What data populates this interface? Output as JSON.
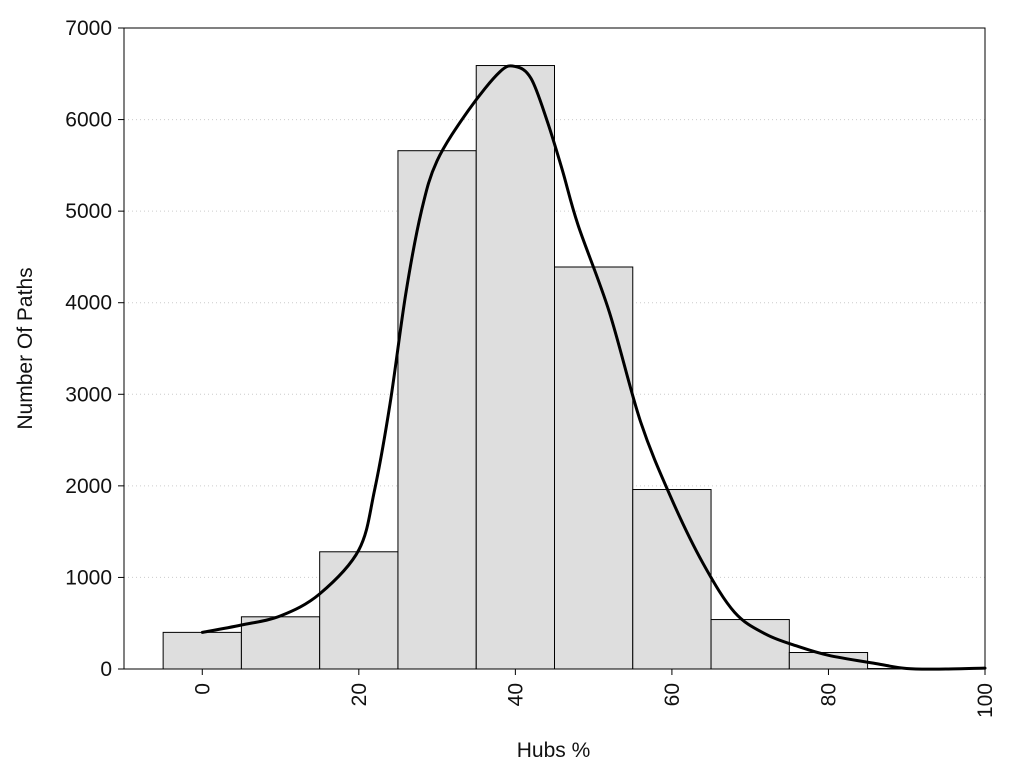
{
  "chart_data": {
    "type": "bar",
    "title": "",
    "xlabel": "Hubs %",
    "ylabel": "Number Of Paths",
    "xlim": [
      -10,
      100
    ],
    "ylim": [
      0,
      7000
    ],
    "grid": true,
    "bar_color": "#dedede",
    "bar_edge_color": "#000000",
    "curve_color": "#000000",
    "grid_color": "#cccccc",
    "x_ticks": [
      0,
      20,
      40,
      60,
      80,
      100
    ],
    "y_ticks": [
      0,
      1000,
      2000,
      3000,
      4000,
      5000,
      6000,
      7000
    ],
    "bins": [
      {
        "x0": -5,
        "x1": 5,
        "value": 400
      },
      {
        "x0": 5,
        "x1": 15,
        "value": 570
      },
      {
        "x0": 15,
        "x1": 25,
        "value": 1280
      },
      {
        "x0": 25,
        "x1": 35,
        "value": 5660
      },
      {
        "x0": 35,
        "x1": 45,
        "value": 6590
      },
      {
        "x0": 45,
        "x1": 55,
        "value": 4390
      },
      {
        "x0": 55,
        "x1": 65,
        "value": 1960
      },
      {
        "x0": 65,
        "x1": 75,
        "value": 540
      },
      {
        "x0": 75,
        "x1": 85,
        "value": 180
      },
      {
        "x0": 85,
        "x1": 95,
        "value": 5
      }
    ],
    "density_curve": [
      [
        0,
        400
      ],
      [
        5,
        480
      ],
      [
        10,
        580
      ],
      [
        15,
        820
      ],
      [
        20,
        1300
      ],
      [
        22,
        1950
      ],
      [
        24,
        2900
      ],
      [
        26,
        4100
      ],
      [
        28,
        5000
      ],
      [
        30,
        5550
      ],
      [
        34,
        6100
      ],
      [
        38,
        6520
      ],
      [
        40,
        6580
      ],
      [
        42,
        6450
      ],
      [
        44,
        6000
      ],
      [
        46,
        5450
      ],
      [
        48,
        4850
      ],
      [
        52,
        3900
      ],
      [
        56,
        2700
      ],
      [
        60,
        1850
      ],
      [
        64,
        1150
      ],
      [
        68,
        620
      ],
      [
        72,
        380
      ],
      [
        76,
        250
      ],
      [
        80,
        150
      ],
      [
        86,
        60
      ],
      [
        90,
        5
      ],
      [
        95,
        0
      ],
      [
        100,
        10
      ]
    ]
  }
}
